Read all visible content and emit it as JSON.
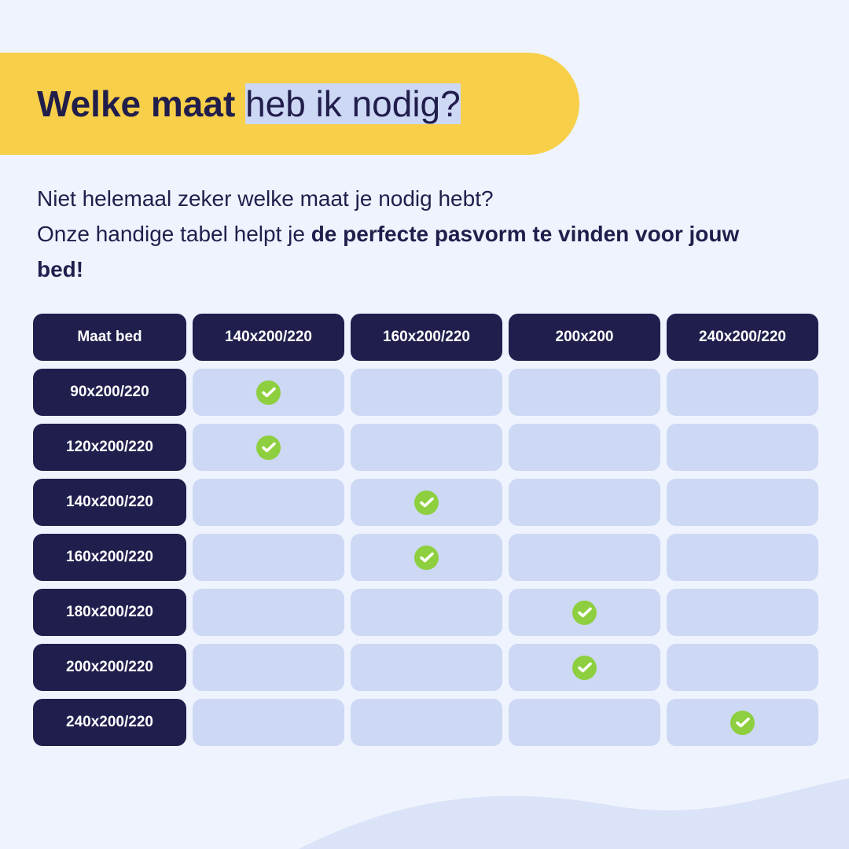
{
  "colors": {
    "background": "#eef3fd",
    "banner": "#f7cf48",
    "navy": "#201e4d",
    "cell": "#cdd8f5",
    "check": "#8dcf3f"
  },
  "title": {
    "bold": "Welke maat",
    "regular": "heb ik nodig?"
  },
  "intro": {
    "line1": "Niet helemaal zeker welke maat je nodig hebt?",
    "line2_regular": "Onze handige tabel helpt je",
    "line2_bold": "de perfecte pasvorm te vinden voor jouw bed!"
  },
  "table": {
    "corner": "Maat bed",
    "columns": [
      "140x200/220",
      "160x200/220",
      "200x200",
      "240x200/220"
    ],
    "rows": [
      {
        "label": "90x200/220",
        "match": 0
      },
      {
        "label": "120x200/220",
        "match": 0
      },
      {
        "label": "140x200/220",
        "match": 1
      },
      {
        "label": "160x200/220",
        "match": 1
      },
      {
        "label": "180x200/220",
        "match": 2
      },
      {
        "label": "200x200/220",
        "match": 2
      },
      {
        "label": "240x200/220",
        "match": 3
      }
    ],
    "match_icon": "check-circle-icon"
  }
}
